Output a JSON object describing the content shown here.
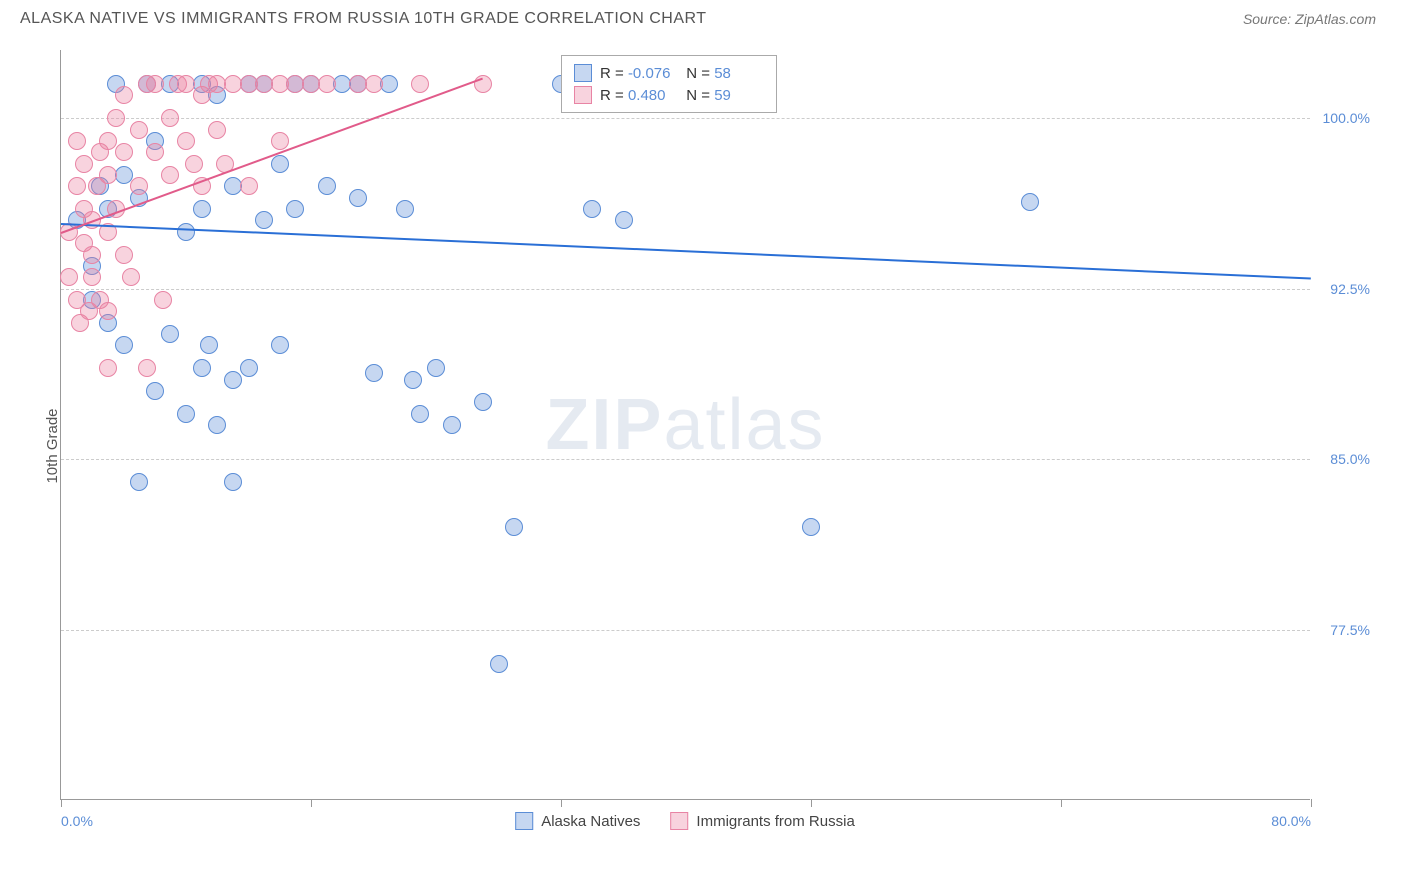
{
  "title": "ALASKA NATIVE VS IMMIGRANTS FROM RUSSIA 10TH GRADE CORRELATION CHART",
  "source": "Source: ZipAtlas.com",
  "y_axis_label": "10th Grade",
  "watermark": "ZIPatlas",
  "chart": {
    "type": "scatter",
    "xlim": [
      0,
      80
    ],
    "ylim": [
      70,
      103
    ],
    "x_ticks": [
      0,
      16,
      32,
      48,
      64,
      80
    ],
    "x_tick_labels_shown": {
      "0": "0.0%",
      "80": "80.0%"
    },
    "y_ticks": [
      77.5,
      85.0,
      92.5,
      100.0
    ],
    "y_tick_labels": [
      "77.5%",
      "85.0%",
      "92.5%",
      "100.0%"
    ],
    "grid_color": "#cccccc",
    "background": "#ffffff",
    "marker_radius": 9,
    "marker_opacity": 0.5,
    "series": [
      {
        "name": "Alaska Natives",
        "color_fill": "rgba(91,141,214,0.35)",
        "color_stroke": "#5b8dd6",
        "R": "-0.076",
        "N": "58",
        "trend": {
          "x1": 0,
          "y1": 95.4,
          "x2": 80,
          "y2": 93.0,
          "color": "#2a6fd6",
          "width": 2
        },
        "points": [
          [
            1,
            95.5
          ],
          [
            2,
            93.5
          ],
          [
            2,
            92
          ],
          [
            2.5,
            97
          ],
          [
            3,
            96
          ],
          [
            3,
            91
          ],
          [
            3.5,
            101.5
          ],
          [
            4,
            97.5
          ],
          [
            4,
            90
          ],
          [
            5,
            96.5
          ],
          [
            5,
            84
          ],
          [
            5.5,
            101.5
          ],
          [
            6,
            99
          ],
          [
            6,
            88
          ],
          [
            7,
            90.5
          ],
          [
            7,
            101.5
          ],
          [
            8,
            95
          ],
          [
            8,
            87
          ],
          [
            9,
            96
          ],
          [
            9,
            101.5
          ],
          [
            9,
            89
          ],
          [
            9.5,
            90
          ],
          [
            10,
            101
          ],
          [
            10,
            86.5
          ],
          [
            11,
            97
          ],
          [
            11,
            88.5
          ],
          [
            11,
            84
          ],
          [
            12,
            101.5
          ],
          [
            12,
            89
          ],
          [
            13,
            101.5
          ],
          [
            13,
            95.5
          ],
          [
            14,
            98
          ],
          [
            14,
            90
          ],
          [
            15,
            101.5
          ],
          [
            15,
            96
          ],
          [
            16,
            101.5
          ],
          [
            17,
            97
          ],
          [
            18,
            101.5
          ],
          [
            19,
            101.5
          ],
          [
            19,
            96.5
          ],
          [
            20,
            88.8
          ],
          [
            21,
            101.5
          ],
          [
            22,
            96
          ],
          [
            22.5,
            88.5
          ],
          [
            23,
            87
          ],
          [
            24,
            89
          ],
          [
            25,
            86.5
          ],
          [
            27,
            87.5
          ],
          [
            28,
            76
          ],
          [
            29,
            82
          ],
          [
            32,
            101.5
          ],
          [
            34,
            96
          ],
          [
            36,
            95.5
          ],
          [
            40,
            101.5
          ],
          [
            43,
            101.5
          ],
          [
            45,
            101.5
          ],
          [
            48,
            82
          ],
          [
            62,
            96.3
          ]
        ]
      },
      {
        "name": "Immigrants from Russia",
        "color_fill": "rgba(235,130,160,0.35)",
        "color_stroke": "#e884a4",
        "R": "0.480",
        "N": "59",
        "trend": {
          "x1": 0,
          "y1": 95.0,
          "x2": 27,
          "y2": 101.8,
          "color": "#e15b8a",
          "width": 2
        },
        "points": [
          [
            0.5,
            93
          ],
          [
            0.5,
            95
          ],
          [
            1,
            92
          ],
          [
            1,
            97
          ],
          [
            1,
            99
          ],
          [
            1.2,
            91
          ],
          [
            1.5,
            94.5
          ],
          [
            1.5,
            96
          ],
          [
            1.5,
            98
          ],
          [
            1.8,
            91.5
          ],
          [
            2,
            93
          ],
          [
            2,
            94
          ],
          [
            2,
            95.5
          ],
          [
            2.3,
            97
          ],
          [
            2.5,
            92
          ],
          [
            2.5,
            98.5
          ],
          [
            3,
            89
          ],
          [
            3,
            91.5
          ],
          [
            3,
            95
          ],
          [
            3,
            97.5
          ],
          [
            3,
            99
          ],
          [
            3.5,
            96
          ],
          [
            3.5,
            100
          ],
          [
            4,
            94
          ],
          [
            4,
            98.5
          ],
          [
            4,
            101
          ],
          [
            4.5,
            93
          ],
          [
            5,
            97
          ],
          [
            5,
            99.5
          ],
          [
            5.5,
            101.5
          ],
          [
            5.5,
            89
          ],
          [
            6,
            98.5
          ],
          [
            6,
            101.5
          ],
          [
            6.5,
            92
          ],
          [
            7,
            97.5
          ],
          [
            7,
            100
          ],
          [
            7.5,
            101.5
          ],
          [
            8,
            101.5
          ],
          [
            8,
            99
          ],
          [
            8.5,
            98
          ],
          [
            9,
            97
          ],
          [
            9,
            101
          ],
          [
            9.5,
            101.5
          ],
          [
            10,
            99.5
          ],
          [
            10,
            101.5
          ],
          [
            10.5,
            98
          ],
          [
            11,
            101.5
          ],
          [
            12,
            101.5
          ],
          [
            12,
            97
          ],
          [
            13,
            101.5
          ],
          [
            14,
            99
          ],
          [
            14,
            101.5
          ],
          [
            15,
            101.5
          ],
          [
            16,
            101.5
          ],
          [
            17,
            101.5
          ],
          [
            19,
            101.5
          ],
          [
            20,
            101.5
          ],
          [
            23,
            101.5
          ],
          [
            27,
            101.5
          ]
        ]
      }
    ]
  },
  "legend": {
    "items": [
      {
        "label": "Alaska Natives",
        "fill": "rgba(91,141,214,0.35)",
        "stroke": "#5b8dd6"
      },
      {
        "label": "Immigrants from Russia",
        "fill": "rgba(235,130,160,0.35)",
        "stroke": "#e884a4"
      }
    ]
  }
}
